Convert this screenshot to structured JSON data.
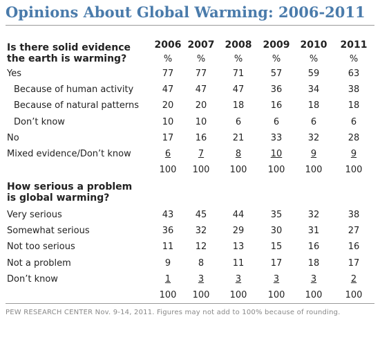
{
  "title": "Opinions About Global Warming: 2006-2011",
  "years": [
    "2006",
    "2007",
    "2008",
    "2009",
    "2010",
    "2011"
  ],
  "pct_header": [
    "%",
    "%",
    "%",
    "%",
    "%",
    "%"
  ],
  "section1": {
    "question_line1": "Is there solid evidence",
    "question_line2": "the earth is warming?",
    "rows": [
      {
        "label": "Yes",
        "indent": false,
        "underline": false,
        "values": [
          "77",
          "77",
          "71",
          "57",
          "59",
          "63"
        ]
      },
      {
        "label": "Because of human activity",
        "indent": true,
        "underline": false,
        "values": [
          "47",
          "47",
          "47",
          "36",
          "34",
          "38"
        ]
      },
      {
        "label": "Because of natural patterns",
        "indent": true,
        "underline": false,
        "values": [
          "20",
          "20",
          "18",
          "16",
          "18",
          "18"
        ]
      },
      {
        "label": "Don’t know",
        "indent": true,
        "underline": false,
        "values": [
          "10",
          "10",
          "6",
          "6",
          "6",
          "6"
        ]
      },
      {
        "label": "No",
        "indent": false,
        "underline": false,
        "values": [
          "17",
          "16",
          "21",
          "33",
          "32",
          "28"
        ]
      },
      {
        "label": "Mixed evidence/Don’t know",
        "indent": false,
        "underline": true,
        "values": [
          "6",
          "7",
          "8",
          "10",
          "9",
          "9"
        ]
      },
      {
        "label": "",
        "indent": false,
        "underline": false,
        "values": [
          "100",
          "100",
          "100",
          "100",
          "100",
          "100"
        ]
      }
    ]
  },
  "section2": {
    "question_line1": "How serious a problem",
    "question_line2": "is global warming?",
    "rows": [
      {
        "label": "Very serious",
        "indent": false,
        "underline": false,
        "values": [
          "43",
          "45",
          "44",
          "35",
          "32",
          "38"
        ]
      },
      {
        "label": "Somewhat serious",
        "indent": false,
        "underline": false,
        "values": [
          "36",
          "32",
          "29",
          "30",
          "31",
          "27"
        ]
      },
      {
        "label": "Not too serious",
        "indent": false,
        "underline": false,
        "values": [
          "11",
          "12",
          "13",
          "15",
          "16",
          "16"
        ]
      },
      {
        "label": "Not a problem",
        "indent": false,
        "underline": false,
        "values": [
          "9",
          "8",
          "11",
          "17",
          "18",
          "17"
        ]
      },
      {
        "label": "Don’t know",
        "indent": false,
        "underline": true,
        "values": [
          "1",
          "3",
          "3",
          "3",
          "3",
          "2"
        ]
      },
      {
        "label": "",
        "indent": false,
        "underline": false,
        "values": [
          "100",
          "100",
          "100",
          "100",
          "100",
          "100"
        ]
      }
    ]
  },
  "footer": "PEW RESEARCH CENTER Nov. 9-14, 2011. Figures may not add to 100% because of rounding."
}
